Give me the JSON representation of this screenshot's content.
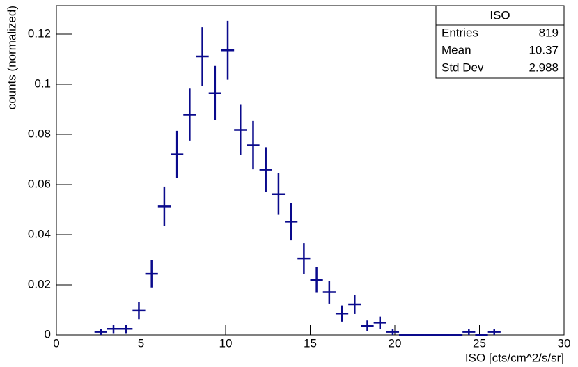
{
  "chart_data": {
    "type": "histogram",
    "xlabel": "ISO [cts/cm^2/s/sr]",
    "ylabel": "counts (normalized)",
    "color": "#0a0a8c",
    "bins": [
      2.25,
      3,
      3.75,
      4.5,
      5.25,
      6,
      6.75,
      7.5,
      8.25,
      9,
      9.75,
      10.5,
      11.25,
      12,
      12.75,
      13.5,
      14.25,
      15,
      15.75,
      16.5,
      17.25,
      18,
      18.75,
      19.5,
      20.25,
      21,
      21.75,
      22.5,
      23.25,
      24,
      24.75,
      25.5,
      26.25
    ],
    "values": [
      0.00122,
      0.00244,
      0.00244,
      0.00977,
      0.02442,
      0.05128,
      0.07204,
      0.08791,
      0.11111,
      0.09646,
      0.11355,
      0.08181,
      0.0757,
      0.06593,
      0.05617,
      0.04518,
      0.03053,
      0.02198,
      0.01709,
      0.00855,
      0.01221,
      0.00366,
      0.00488,
      0.00122,
      0,
      0,
      0,
      0,
      0,
      0.00122,
      0,
      0.00122
    ],
    "errors": [
      0.00122,
      0.00173,
      0.00173,
      0.00345,
      0.00546,
      0.00791,
      0.00938,
      0.01036,
      0.01165,
      0.01085,
      0.01177,
      0.00999,
      0.00961,
      0.00897,
      0.00828,
      0.00743,
      0.00611,
      0.00518,
      0.00457,
      0.00323,
      0.00386,
      0.00211,
      0.00244,
      0.00122,
      0,
      0,
      0,
      0,
      0,
      0.00122,
      0,
      0.00122
    ],
    "xlim": [
      0,
      30
    ],
    "ylim": [
      0,
      0.1314
    ],
    "xticks": [
      0,
      5,
      10,
      15,
      20,
      25,
      30
    ],
    "yticks": [
      0,
      0.02,
      0.04,
      0.06,
      0.08,
      0.1,
      0.12
    ],
    "stats": {
      "title": "ISO",
      "rows": [
        [
          "Entries",
          "819"
        ],
        [
          "Mean",
          "10.37"
        ],
        [
          "Std Dev",
          "2.988"
        ]
      ]
    }
  }
}
